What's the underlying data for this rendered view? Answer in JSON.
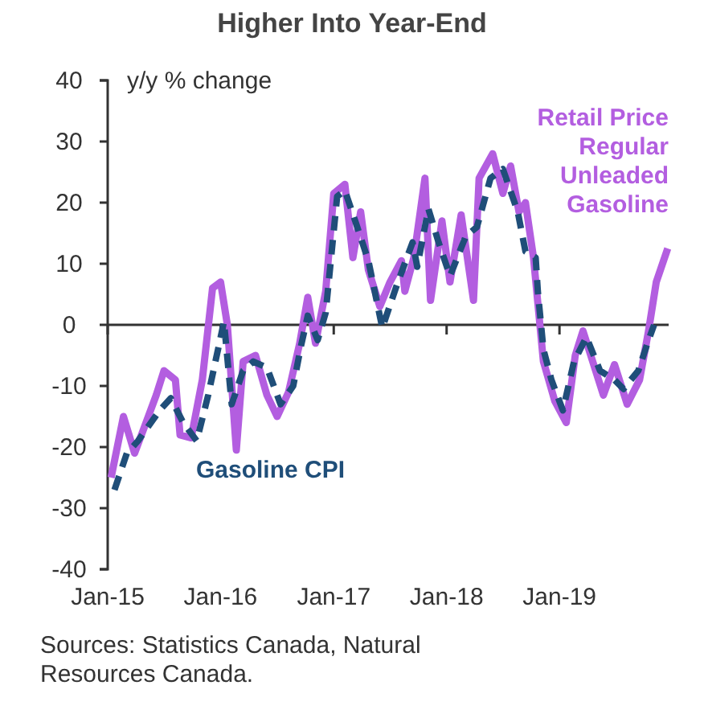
{
  "chart_data": {
    "type": "line",
    "title": "Higher Into Year-End",
    "ylabel": "y/y % change",
    "xlim": [
      "2015-01-01",
      "2019-12-20"
    ],
    "xticks": [
      {
        "value": "2015-01-01",
        "label": "Jan-15"
      },
      {
        "value": "2016-01-01",
        "label": "Jan-16"
      },
      {
        "value": "2017-01-01",
        "label": "Jan-17"
      },
      {
        "value": "2018-01-01",
        "label": "Jan-18"
      },
      {
        "value": "2019-01-01",
        "label": "Jan-19"
      }
    ],
    "ylim": [
      -40,
      40
    ],
    "yticks": [
      -40,
      -30,
      -20,
      -10,
      0,
      10,
      20,
      30,
      40
    ],
    "grid": false,
    "marker": "none",
    "ref_lines": [
      {
        "axis": "y",
        "value": 0,
        "color": "#333333"
      }
    ],
    "annotations": [
      "Sources: Statistics Canada, Natural Resources Canada."
    ],
    "series": [
      {
        "name": "Retail Price Regular Unleaded Gasoline",
        "color": "#b35ee0",
        "line_style": "solid",
        "x": [
          "2015-01-12",
          "2015-02-21",
          "2015-03-29",
          "2015-05-05",
          "2015-06-07",
          "2015-07-02",
          "2015-08-08",
          "2015-08-23",
          "2015-09-28",
          "2015-11-03",
          "2015-12-06",
          "2016-01-01",
          "2016-01-23",
          "2016-02-21",
          "2016-03-14",
          "2016-04-23",
          "2016-05-30",
          "2016-07-02",
          "2016-08-08",
          "2016-09-13",
          "2016-10-09",
          "2016-11-03",
          "2016-12-06",
          "2017-01-01",
          "2017-02-06",
          "2017-03-04",
          "2017-03-29",
          "2017-04-23",
          "2017-05-30",
          "2017-07-02",
          "2017-08-08",
          "2017-08-19",
          "2017-09-17",
          "2017-10-23",
          "2017-11-10",
          "2017-12-17",
          "2018-01-12",
          "2018-02-17",
          "2018-03-29",
          "2018-04-16",
          "2018-05-30",
          "2018-07-02",
          "2018-07-27",
          "2018-08-23",
          "2018-09-13",
          "2018-10-09",
          "2018-11-10",
          "2018-12-17",
          "2019-01-23",
          "2019-02-21",
          "2019-03-18",
          "2019-05-23",
          "2019-06-28",
          "2019-08-08",
          "2019-09-17",
          "2019-10-16",
          "2019-11-10",
          "2019-12-17"
        ],
        "values": [
          -25,
          -15,
          -21,
          -16,
          -11.5,
          -7.5,
          -9,
          -18,
          -18.5,
          -9,
          6,
          7,
          0,
          -20.5,
          -6,
          -5,
          -11.5,
          -15,
          -11,
          -3,
          4.5,
          -3,
          5.5,
          21.5,
          23,
          11,
          18.5,
          9,
          3,
          7,
          10.5,
          5.5,
          11,
          24,
          4,
          17,
          7,
          18,
          4,
          24,
          28,
          21.5,
          26,
          18.5,
          20,
          11,
          -6,
          -12.5,
          -16,
          -5,
          -1,
          -11.5,
          -6.5,
          -13,
          -9,
          -1,
          7,
          12.5
        ]
      },
      {
        "name": "Gasoline CPI",
        "color": "#1f4e79",
        "line_style": "dashed",
        "x": [
          "2015-01-23",
          "2015-03-04",
          "2015-04-09",
          "2015-06-18",
          "2015-07-24",
          "2015-09-02",
          "2015-10-16",
          "2015-11-22",
          "2016-01-12",
          "2016-02-06",
          "2016-03-14",
          "2016-04-16",
          "2016-05-30",
          "2016-07-13",
          "2016-08-23",
          "2016-09-17",
          "2016-10-09",
          "2016-11-10",
          "2016-12-06",
          "2017-01-12",
          "2017-02-06",
          "2017-03-18",
          "2017-04-23",
          "2017-06-07",
          "2017-07-24",
          "2017-09-13",
          "2017-09-28",
          "2017-11-03",
          "2017-12-06",
          "2018-01-12",
          "2018-03-04",
          "2018-04-09",
          "2018-05-23",
          "2018-07-02",
          "2018-08-19",
          "2018-09-13",
          "2018-10-16",
          "2018-10-23",
          "2018-11-10",
          "2018-12-06",
          "2019-01-12",
          "2019-02-17",
          "2019-03-29",
          "2019-05-12",
          "2019-06-28",
          "2019-07-27",
          "2019-09-13",
          "2019-10-16",
          "2019-11-03"
        ],
        "values": [
          -27,
          -21,
          -19,
          -14,
          -12,
          -16,
          -19,
          -11.5,
          0.5,
          -13,
          -7.5,
          -6,
          -7,
          -13,
          -10,
          -3.5,
          1.5,
          -2.5,
          2,
          21,
          22,
          16,
          10.5,
          -0.5,
          6.5,
          13.5,
          9.5,
          19,
          13.5,
          8,
          14.5,
          16,
          24,
          25.5,
          18.5,
          12,
          11,
          5.5,
          -4,
          -9,
          -14,
          -6,
          -2,
          -7.5,
          -9,
          -10.5,
          -7.5,
          -2.5,
          0
        ]
      }
    ]
  }
}
